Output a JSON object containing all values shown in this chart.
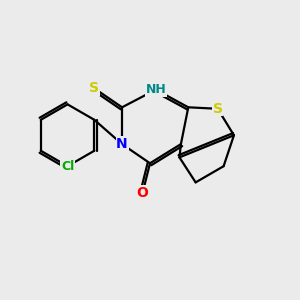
{
  "background_color": "#ebebeb",
  "bond_color": "#000000",
  "atom_colors": {
    "S_thione": "#cccc00",
    "S_thio": "#cccc00",
    "N": "#0000ff",
    "O": "#ff0000",
    "Cl": "#00aa00",
    "NH": "#008888"
  },
  "figsize": [
    3.0,
    3.0
  ],
  "dpi": 100
}
